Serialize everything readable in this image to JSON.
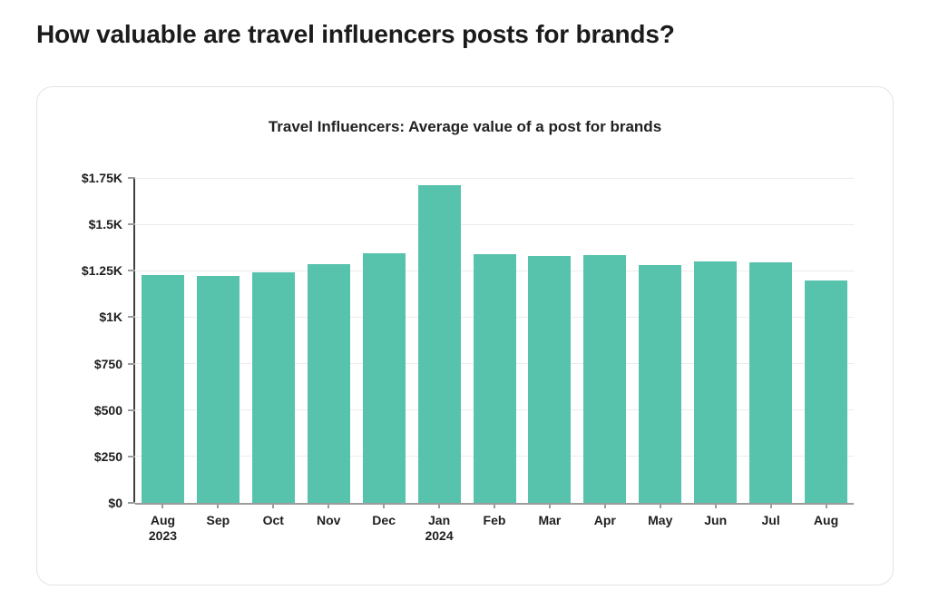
{
  "page": {
    "title": "How valuable are travel influencers posts for brands?"
  },
  "chart_data": {
    "type": "bar",
    "title": "Travel Influencers: Average value of a post for brands",
    "categories": [
      {
        "label": "Aug",
        "sublabel": "2023"
      },
      {
        "label": "Sep",
        "sublabel": ""
      },
      {
        "label": "Oct",
        "sublabel": ""
      },
      {
        "label": "Nov",
        "sublabel": ""
      },
      {
        "label": "Dec",
        "sublabel": ""
      },
      {
        "label": "Jan",
        "sublabel": "2024"
      },
      {
        "label": "Feb",
        "sublabel": ""
      },
      {
        "label": "Mar",
        "sublabel": ""
      },
      {
        "label": "Apr",
        "sublabel": ""
      },
      {
        "label": "May",
        "sublabel": ""
      },
      {
        "label": "Jun",
        "sublabel": ""
      },
      {
        "label": "Jul",
        "sublabel": ""
      },
      {
        "label": "Aug",
        "sublabel": ""
      }
    ],
    "values": [
      1225,
      1220,
      1240,
      1285,
      1345,
      1710,
      1340,
      1330,
      1335,
      1280,
      1300,
      1295,
      1200
    ],
    "xlabel": "",
    "ylabel": "",
    "ylim": [
      0,
      1750
    ],
    "ytick_step": 250,
    "ytick_labels": [
      "$0",
      "$250",
      "$500",
      "$750",
      "$1K",
      "$1.25K",
      "$1.5K",
      "$1.75K"
    ],
    "grid": true,
    "legend": "none",
    "bar_color": "#58C3AD",
    "axis_color": "#3f3f3f",
    "baseline_color": "#9c9c9c",
    "gridline_color": "#ececec"
  }
}
